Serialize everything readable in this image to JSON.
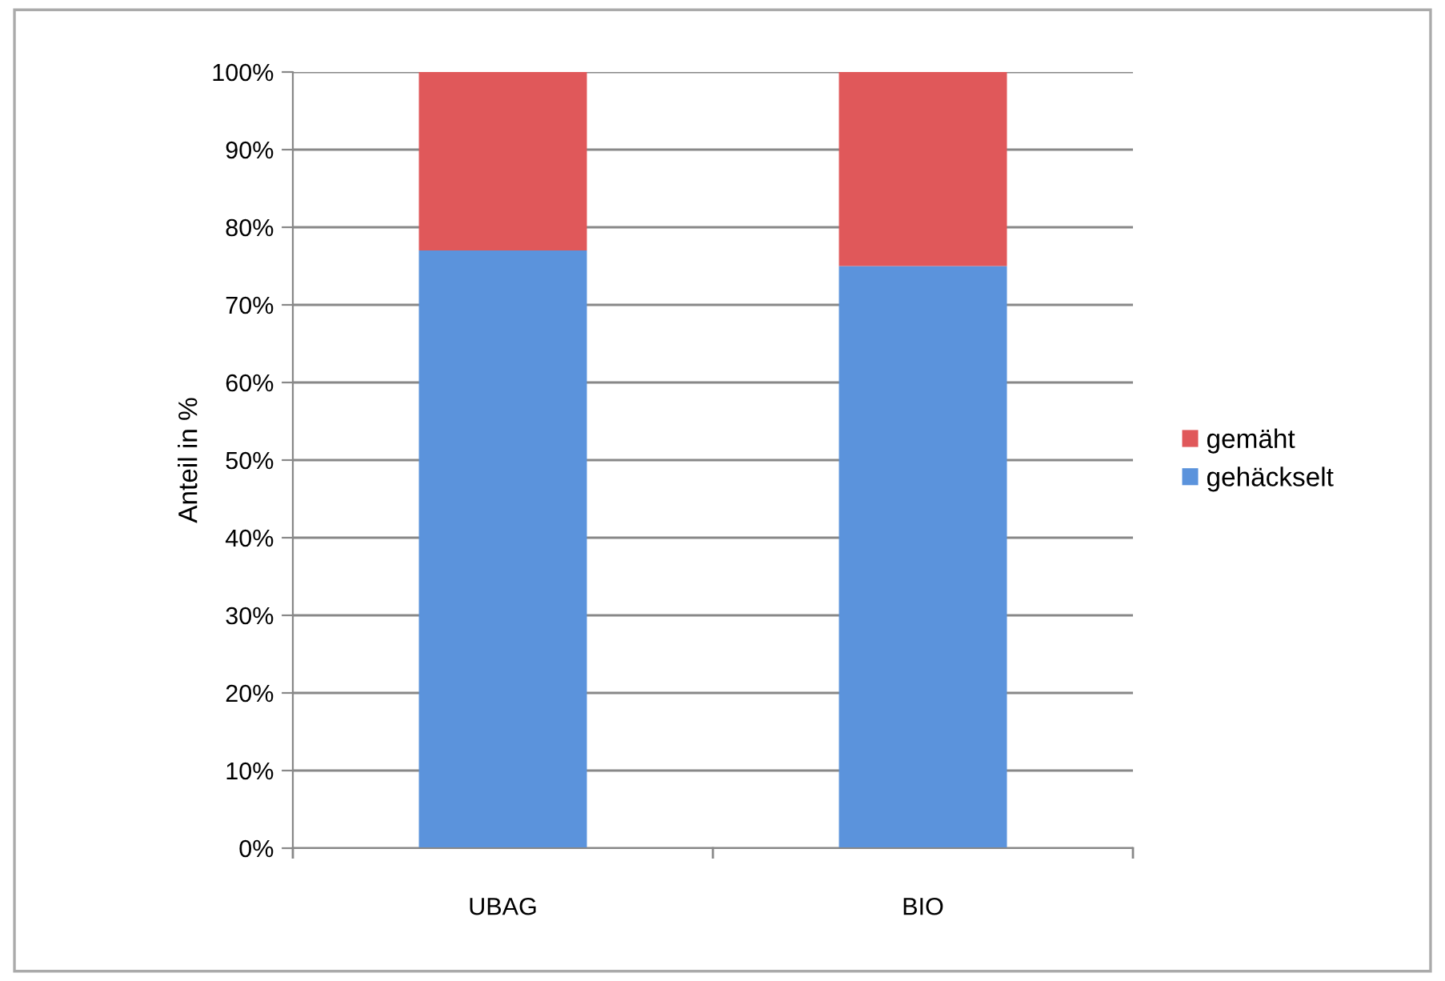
{
  "chart_data": {
    "type": "bar",
    "stacked": true,
    "ylabel": "Anteil in %",
    "categories": [
      "UBAG",
      "BIO"
    ],
    "series": [
      {
        "name": "gehäckselt",
        "color": "#5b93dc",
        "values": [
          77,
          75
        ]
      },
      {
        "name": "gemäht",
        "color": "#e0585a",
        "values": [
          23,
          25
        ]
      }
    ],
    "ylim": [
      0,
      100
    ],
    "yticks": [
      {
        "value": 0,
        "label": "0%"
      },
      {
        "value": 10,
        "label": "10%"
      },
      {
        "value": 20,
        "label": "20%"
      },
      {
        "value": 30,
        "label": "30%"
      },
      {
        "value": 40,
        "label": "40%"
      },
      {
        "value": 50,
        "label": "50%"
      },
      {
        "value": 60,
        "label": "60%"
      },
      {
        "value": 70,
        "label": "70%"
      },
      {
        "value": 80,
        "label": "80%"
      },
      {
        "value": 90,
        "label": "90%"
      },
      {
        "value": 100,
        "label": "100%"
      }
    ],
    "grid": "y",
    "legend": "right"
  }
}
